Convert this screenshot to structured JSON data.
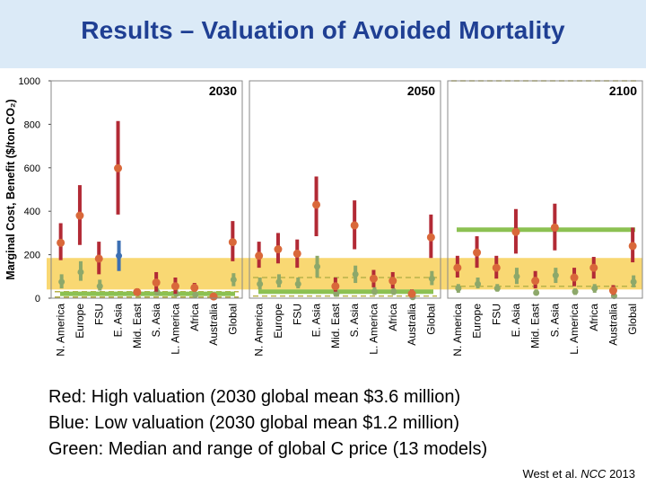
{
  "slide": {
    "title": "Results – Valuation of Avoided Mortality",
    "captions": [
      "Red:  High valuation (2030 global mean $3.6 million)",
      "Blue:  Low valuation (2030 global mean $1.2 million)",
      "Green:  Median and range of global C price (13 models)"
    ],
    "citation": {
      "author": "West et al. ",
      "journal": "NCC",
      "year": " 2013"
    }
  },
  "colors": {
    "header_bg": "#dbeaf7",
    "title": "#1f3f93",
    "red": "#b22a35",
    "red_marker": "#d9683a",
    "blue": "#3c6fb3",
    "green": "#8cc152",
    "green_marker": "#8da86a",
    "band": "#f8d15a",
    "dash": "#b9b24a"
  },
  "chart_data": {
    "type": "scatter",
    "ylabel": "Marginal Cost, Benefit ($/ton CO₂)",
    "ylim": [
      0,
      1000
    ],
    "yticks": [
      0,
      200,
      400,
      600,
      800,
      1000
    ],
    "categories": [
      "N. America",
      "Europe",
      "FSU",
      "E. Asia",
      "Mid. East",
      "S. Asia",
      "L. America",
      "Africa",
      "Australia",
      "Global"
    ],
    "band": [
      40,
      185
    ],
    "panels": [
      {
        "year": "2030",
        "label_pos": "top-right",
        "red": [
          {
            "center": 255,
            "low": 175,
            "high": 345
          },
          {
            "center": 380,
            "low": 245,
            "high": 520
          },
          {
            "center": 182,
            "low": 110,
            "high": 260
          },
          {
            "center": 598,
            "low": 385,
            "high": 815
          },
          {
            "center": 28,
            "low": 15,
            "high": 45
          },
          {
            "center": 72,
            "low": 30,
            "high": 120
          },
          {
            "center": 55,
            "low": 20,
            "high": 95
          },
          {
            "center": 48,
            "low": 30,
            "high": 70
          },
          {
            "center": 8,
            "low": 2,
            "high": 18
          },
          {
            "center": 258,
            "low": 170,
            "high": 355
          }
        ],
        "blue": [
          {
            "center": 75,
            "low": 45,
            "high": 110
          },
          {
            "center": 120,
            "low": 80,
            "high": 170
          },
          {
            "center": 55,
            "low": 35,
            "high": 85
          },
          {
            "center": 195,
            "low": 125,
            "high": 265
          },
          {
            "center": 22,
            "low": 10,
            "high": 40
          },
          {
            "center": 28,
            "low": 12,
            "high": 45
          },
          {
            "center": 20,
            "low": 8,
            "high": 40
          },
          {
            "center": 15,
            "low": 5,
            "high": 25
          },
          {
            "center": 5,
            "low": 2,
            "high": 10
          },
          {
            "center": 85,
            "low": 55,
            "high": 115
          }
        ],
        "green": {
          "median": 20,
          "low": 5,
          "high": 30
        }
      },
      {
        "year": "2050",
        "label_pos": "top-right",
        "red": [
          {
            "center": 195,
            "low": 140,
            "high": 260
          },
          {
            "center": 225,
            "low": 160,
            "high": 300
          },
          {
            "center": 205,
            "low": 140,
            "high": 270
          },
          {
            "center": 430,
            "low": 285,
            "high": 560
          },
          {
            "center": 55,
            "low": 30,
            "high": 95
          },
          {
            "center": 335,
            "low": 225,
            "high": 450
          },
          {
            "center": 90,
            "low": 50,
            "high": 130
          },
          {
            "center": 80,
            "low": 45,
            "high": 120
          },
          {
            "center": 20,
            "low": 8,
            "high": 40
          },
          {
            "center": 280,
            "low": 185,
            "high": 385
          }
        ],
        "blue": [
          {
            "center": 65,
            "low": 40,
            "high": 95
          },
          {
            "center": 75,
            "low": 50,
            "high": 110
          },
          {
            "center": 65,
            "low": 45,
            "high": 95
          },
          {
            "center": 145,
            "low": 95,
            "high": 195
          },
          {
            "center": 20,
            "low": 8,
            "high": 35
          },
          {
            "center": 110,
            "low": 70,
            "high": 150
          },
          {
            "center": 30,
            "low": 15,
            "high": 50
          },
          {
            "center": 30,
            "low": 15,
            "high": 45
          },
          {
            "center": 5,
            "low": 2,
            "high": 10
          },
          {
            "center": 90,
            "low": 60,
            "high": 125
          }
        ],
        "green": {
          "median": 30,
          "low": 10,
          "high": 95
        }
      },
      {
        "year": "2100",
        "label_pos": "top-right",
        "red": [
          {
            "center": 140,
            "low": 95,
            "high": 195
          },
          {
            "center": 210,
            "low": 140,
            "high": 285
          },
          {
            "center": 140,
            "low": 90,
            "high": 195
          },
          {
            "center": 305,
            "low": 205,
            "high": 410
          },
          {
            "center": 80,
            "low": 45,
            "high": 125
          },
          {
            "center": 325,
            "low": 220,
            "high": 435
          },
          {
            "center": 95,
            "low": 55,
            "high": 140
          },
          {
            "center": 140,
            "low": 90,
            "high": 190
          },
          {
            "center": 35,
            "low": 15,
            "high": 60
          },
          {
            "center": 240,
            "low": 165,
            "high": 325
          }
        ],
        "blue": [
          {
            "center": 45,
            "low": 25,
            "high": 65
          },
          {
            "center": 65,
            "low": 45,
            "high": 95
          },
          {
            "center": 45,
            "low": 30,
            "high": 65
          },
          {
            "center": 100,
            "low": 65,
            "high": 140
          },
          {
            "center": 25,
            "low": 12,
            "high": 40
          },
          {
            "center": 105,
            "low": 70,
            "high": 140
          },
          {
            "center": 30,
            "low": 15,
            "high": 45
          },
          {
            "center": 45,
            "low": 25,
            "high": 65
          },
          {
            "center": 10,
            "low": 4,
            "high": 18
          },
          {
            "center": 75,
            "low": 50,
            "high": 105
          }
        ],
        "green": {
          "median": 315,
          "low": 55,
          "high": 1000
        }
      }
    ]
  }
}
